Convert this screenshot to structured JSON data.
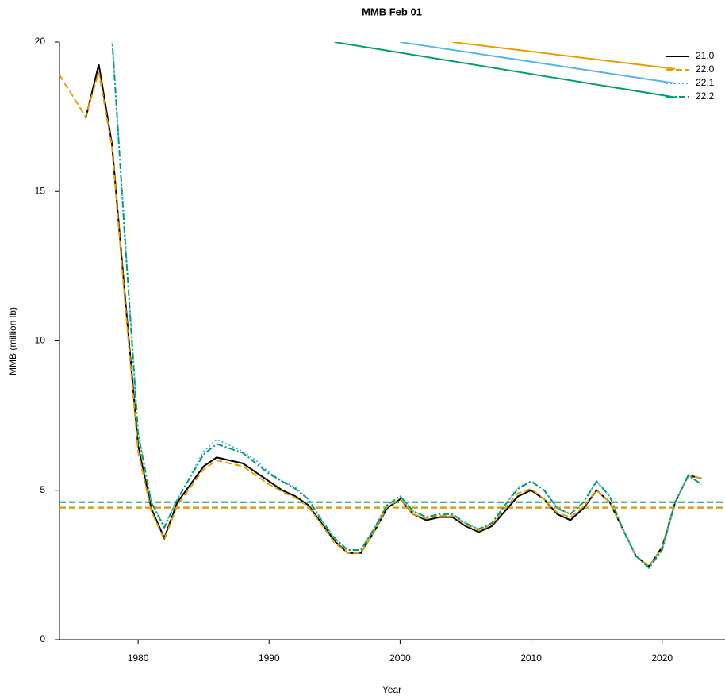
{
  "chart_data": {
    "type": "line",
    "title": "MMB Feb 01",
    "x_label": "Year",
    "y_label": "MMB (million lb)",
    "x": [
      1974,
      1975,
      1976,
      1977,
      1978,
      1979,
      1980,
      1981,
      1982,
      1983,
      1984,
      1985,
      1986,
      1987,
      1988,
      1989,
      1990,
      1991,
      1992,
      1993,
      1994,
      1995,
      1996,
      1997,
      1998,
      1999,
      2000,
      2001,
      2002,
      2003,
      2004,
      2005,
      2006,
      2007,
      2008,
      2009,
      2010,
      2011,
      2012,
      2013,
      2014,
      2015,
      2016,
      2017,
      2018,
      2019,
      2020,
      2021,
      2022,
      2023
    ],
    "xlim": [
      1974,
      2024.8
    ],
    "xticks": [
      1980,
      1990,
      2000,
      2010,
      2020
    ],
    "ylim": [
      0,
      20
    ],
    "yticks": [
      0,
      5,
      10,
      15,
      20
    ],
    "legend": "top-right",
    "series": [
      {
        "name": "21.0",
        "color": "#000000",
        "dash": "",
        "values": [
          null,
          null,
          17.45,
          19.25,
          16.6,
          11.5,
          6.5,
          4.4,
          3.4,
          4.6,
          5.2,
          5.8,
          6.1,
          6.0,
          5.9,
          5.6,
          5.3,
          5.0,
          4.8,
          4.5,
          3.9,
          3.3,
          2.9,
          2.9,
          3.6,
          4.4,
          4.7,
          4.2,
          4.0,
          4.1,
          4.1,
          3.8,
          3.6,
          3.8,
          4.3,
          4.8,
          5.0,
          4.7,
          4.2,
          4.0,
          4.4,
          5.0,
          4.6,
          3.7,
          2.8,
          2.45,
          3.1,
          4.6,
          5.5,
          5.4
        ]
      },
      {
        "name": "22.0",
        "color": "#E69F00",
        "dash": "8 4",
        "values": [
          18.9,
          18.2,
          17.5,
          19.0,
          16.5,
          11.3,
          6.3,
          4.3,
          3.35,
          4.5,
          5.1,
          5.7,
          6.0,
          5.9,
          5.8,
          5.5,
          5.2,
          4.95,
          4.75,
          4.45,
          3.85,
          3.25,
          2.9,
          2.9,
          3.6,
          4.45,
          4.7,
          4.2,
          4.05,
          4.15,
          4.15,
          3.85,
          3.65,
          3.85,
          4.4,
          4.9,
          5.05,
          4.7,
          4.25,
          4.1,
          4.45,
          5.0,
          4.6,
          3.7,
          2.8,
          2.45,
          3.1,
          4.6,
          5.5,
          5.4
        ]
      },
      {
        "name": "22.1",
        "color": "#56B4E9",
        "dash": "2 3",
        "values": [
          null,
          null,
          null,
          null,
          20.2,
          13.5,
          7.0,
          4.6,
          3.8,
          4.7,
          5.5,
          6.3,
          6.7,
          6.5,
          6.3,
          6.0,
          5.6,
          5.3,
          5.1,
          4.7,
          4.0,
          3.4,
          3.0,
          3.0,
          3.7,
          4.5,
          4.8,
          4.3,
          4.1,
          4.2,
          4.2,
          3.9,
          3.7,
          3.9,
          4.5,
          5.1,
          5.3,
          5.0,
          4.4,
          4.2,
          4.6,
          5.3,
          4.8,
          3.7,
          2.8,
          2.4,
          3.0,
          4.6,
          5.5,
          5.2
        ]
      },
      {
        "name": "22.2",
        "color": "#009E73",
        "dash": "8 3 2 3",
        "values": [
          null,
          null,
          null,
          null,
          20.2,
          13.4,
          6.9,
          4.6,
          3.75,
          4.7,
          5.45,
          6.2,
          6.55,
          6.4,
          6.25,
          5.9,
          5.55,
          5.3,
          5.05,
          4.7,
          4.0,
          3.4,
          3.0,
          3.0,
          3.7,
          4.5,
          4.8,
          4.3,
          4.1,
          4.2,
          4.2,
          3.9,
          3.7,
          3.9,
          4.5,
          5.05,
          5.3,
          5.0,
          4.4,
          4.2,
          4.6,
          5.3,
          4.8,
          3.7,
          2.8,
          2.4,
          3.0,
          4.6,
          5.5,
          5.2
        ]
      }
    ],
    "reference_lines": [
      {
        "color": "#000000",
        "dash": "8 4",
        "x": [
          1974,
          2024.8
        ],
        "values": [
          4.42,
          4.42
        ]
      },
      {
        "color": "#E69F00",
        "dash": "8 4",
        "x": [
          1974,
          2024.8
        ],
        "values": [
          4.42,
          4.42
        ]
      },
      {
        "color": "#009E73",
        "dash": "8 4",
        "x": [
          1974,
          2024.8
        ],
        "values": [
          4.6,
          4.6
        ]
      },
      {
        "color": "#E69F00",
        "dash": "",
        "x": [
          2004,
          2021
        ],
        "values": [
          20,
          19.1
        ]
      },
      {
        "color": "#56B4E9",
        "dash": "",
        "x": [
          2000,
          2021
        ],
        "values": [
          20,
          18.62
        ]
      },
      {
        "color": "#009E73",
        "dash": "",
        "x": [
          1995,
          2021
        ],
        "values": [
          20,
          18.15
        ]
      }
    ]
  }
}
